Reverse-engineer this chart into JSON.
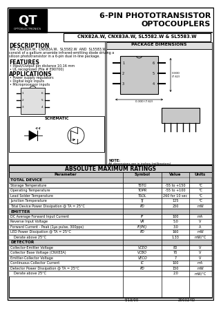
{
  "title_line1": "6-PIN PHOTOTRANSISTOR",
  "title_line2": "OPTOCOUPLERS",
  "part_numbers": "CNX82A.W, CNX83A.W, SL5582.W & SL5583.W",
  "company": "QT",
  "company_sub": "OPTOELECTRONICS",
  "description_title": "DESCRIPTION",
  "description_text1": "The  CNX82A.W,  CNX83A.W,  SL5582.W  AND  SL5583.W,",
  "description_text2": "consist of a gallium arsenide infrared-emitting diode driving a",
  "description_text3": "silicon phototransistor in a 6-pin dual in-line package.",
  "features_title": "FEATURES",
  "features": [
    "Input/Output pin distance 10.16 mm",
    "UL recognized (File # E90700)"
  ],
  "applications_title": "APPLICATIONS",
  "applications": [
    "Power supply regulators",
    "Digital logic inputs",
    "Microprocessor inputs"
  ],
  "pkg_dim_title": "PACKAGE DIMENSIONS",
  "schematic_title": "SCHEMATIC",
  "abs_max_title": "ABSOLUTE MAXIMUM RATINGS",
  "table_header": [
    "Parameter",
    "Symbol",
    "Value",
    "Units"
  ],
  "table_sections": [
    {
      "section": "TOTAL DEVICE",
      "rows": [
        [
          "Storage Temperature",
          "TSTG",
          "-55 to +150",
          "°C"
        ],
        [
          "Operating Temperature",
          "TOPR",
          "-55 to +100",
          "°C"
        ],
        [
          "Lead Solder Temperature",
          "TSOL",
          "260 for 10 sec",
          "°C"
        ],
        [
          "Junction Temperature",
          "TJ",
          "125",
          "°C"
        ],
        [
          "Total Device Power Dissipation @ TA = 25°C",
          "PD",
          "250",
          "mW"
        ]
      ]
    },
    {
      "section": "EMITTER",
      "rows": [
        [
          "DC Average Forward Input Current",
          "IF",
          "100",
          "mA"
        ],
        [
          "Reverse Input Voltage",
          "VR",
          "5.0",
          "V"
        ],
        [
          "Forward Current - Peak (1μs pulse, 300pps)",
          "IF(PK)",
          "3.0",
          "A"
        ],
        [
          "LED Power Dissipation @ TA = 25°C",
          "PD",
          "160",
          "mW"
        ],
        [
          "   Derate above 25°C",
          "",
          "1.33",
          "mW/°C"
        ]
      ]
    },
    {
      "section": "DETECTOR",
      "rows": [
        [
          "Collector-Emitter Voltage",
          "VCEO",
          "80",
          "V"
        ],
        [
          "Collector Base Voltage (CNX83A)",
          "VCBO",
          "70",
          "V"
        ],
        [
          "Emitter-Collector Voltage",
          "VECO",
          "7",
          "V"
        ],
        [
          "Continuous Collector Current",
          "IC",
          "100",
          "mA"
        ],
        [
          "Detector Power Dissipation @ TA = 25°C",
          "PD",
          "150",
          "mW"
        ],
        [
          "   Derate above 25°C",
          "",
          "2.0",
          "mW/°C"
        ]
      ]
    }
  ],
  "footer_date": "4/13/00",
  "footer_doc": "200024D",
  "bg_color": "#ffffff"
}
